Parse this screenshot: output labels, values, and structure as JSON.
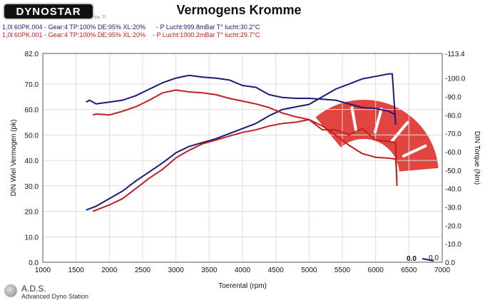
{
  "header": {
    "logo_text": "DYNOSTAR",
    "logo_small": "Inc. TI",
    "title": "Vermogens Kromme"
  },
  "legend": [
    "1,0l 60PK.004 - Gear:4 TP:100% DE:95% XL:20%      - P Lucht:999.8mBar T° lucht:30.2°C",
    "1,0l 60PK.001 - Gear:4 TP:100% DE:95% XL:20%    - P Lucht:1000.2mBar T° lucht:29.7°C"
  ],
  "footer": {
    "brand": "A.D.S.",
    "subtitle": "Advanced Dyno Station"
  },
  "colors": {
    "run_004": "#1a1a7a",
    "run_001": "#c02020",
    "watermark": "#e03a36"
  },
  "chart_data": {
    "type": "line",
    "title": "Vermogens Kromme",
    "xlabel": "Toerental (rpm)",
    "ylabel_left": "DIN Wiel Vermogen (pk)",
    "ylabel_right": "DIN Torque (Nm)",
    "xlim": [
      1000,
      7000
    ],
    "ylim_left": [
      0,
      82
    ],
    "ylim_right": [
      0,
      113.4
    ],
    "x_ticks": [
      1000,
      1500,
      2000,
      2500,
      3000,
      3500,
      4000,
      4500,
      5000,
      5500,
      6000,
      6500,
      7000
    ],
    "y_left_ticks": [
      "0.0",
      "10.0",
      "20.0",
      "30.0",
      "40.0",
      "50.0",
      "60.0",
      "70.0",
      "82.0"
    ],
    "y_left_tick_values": [
      0,
      10,
      20,
      30,
      40,
      50,
      60,
      70,
      82
    ],
    "y_right_ticks": [
      "0.0",
      "-10.0",
      "-20.0",
      "-30.0",
      "-40.0",
      "-50.0",
      "-60.0",
      "-70.0",
      "-80.0",
      "-90.0",
      "-100.0",
      "-113.4"
    ],
    "y_right_tick_values": [
      0,
      10,
      20,
      30,
      40,
      50,
      60,
      70,
      80,
      90,
      100,
      113.4
    ],
    "grid": true,
    "corner_readouts": [
      "0.0",
      "0.0"
    ],
    "series": [
      {
        "name": "1,0l 60PK.004",
        "axis": "left",
        "quantity": "power",
        "x": [
          1650,
          1800,
          2000,
          2200,
          2400,
          2600,
          2800,
          3000,
          3200,
          3400,
          3600,
          3800,
          4000,
          4200,
          4400,
          4600,
          4800,
          5000,
          5200,
          5400,
          5600,
          5800,
          6000,
          6200,
          6250,
          6300
        ],
        "y": [
          20.5,
          22,
          25,
          28,
          32,
          35.5,
          39,
          43,
          45.5,
          47,
          48.5,
          50.5,
          52.5,
          54.5,
          57.5,
          60,
          61,
          62,
          65,
          68,
          70,
          72,
          73,
          74,
          74,
          54
        ]
      },
      {
        "name": "1,0l 60PK.004",
        "axis": "right",
        "quantity": "torque",
        "x": [
          1650,
          1700,
          1800,
          2000,
          2200,
          2400,
          2600,
          2800,
          3000,
          3200,
          3400,
          3600,
          3800,
          4000,
          4200,
          4400,
          4600,
          4800,
          5000,
          5200,
          5400,
          5600,
          5800,
          6000,
          6200,
          6300
        ],
        "y": [
          87,
          88,
          86,
          87,
          88,
          90.5,
          94,
          97.5,
          100,
          101.5,
          100.5,
          100,
          99,
          96,
          95,
          91,
          89.5,
          89,
          89,
          88.5,
          88,
          86,
          84,
          83.5,
          82,
          80
        ]
      },
      {
        "name": "1,0l 60PK.001",
        "axis": "left",
        "quantity": "power",
        "x": [
          1750,
          1800,
          2000,
          2200,
          2400,
          2600,
          2800,
          3000,
          3200,
          3400,
          3600,
          3800,
          4000,
          4200,
          4400,
          4600,
          4800,
          5000,
          5200,
          5400,
          5600,
          5800,
          6000,
          6200,
          6300,
          6320
        ],
        "y": [
          20,
          20.5,
          22.5,
          25,
          29,
          33,
          36.5,
          41,
          44,
          46.5,
          48,
          49.5,
          51,
          52,
          53.5,
          54.5,
          55,
          56,
          52,
          52,
          50,
          52.5,
          48,
          47.5,
          47,
          30
        ]
      },
      {
        "name": "1,0l 60PK.001",
        "axis": "right",
        "quantity": "torque",
        "x": [
          1750,
          1800,
          2000,
          2200,
          2400,
          2600,
          2800,
          3000,
          3200,
          3400,
          3600,
          3800,
          4000,
          4200,
          4400,
          4600,
          4800,
          5000,
          5200,
          5400,
          5600,
          5800,
          6000,
          6200,
          6300,
          6320
        ],
        "y": [
          80,
          80.5,
          80,
          82,
          84.5,
          88,
          92,
          93.5,
          92.5,
          92,
          91,
          89,
          87.5,
          86,
          84,
          81,
          79,
          77.5,
          74,
          69,
          63.5,
          59,
          57,
          56.5,
          56,
          45
        ]
      }
    ]
  }
}
